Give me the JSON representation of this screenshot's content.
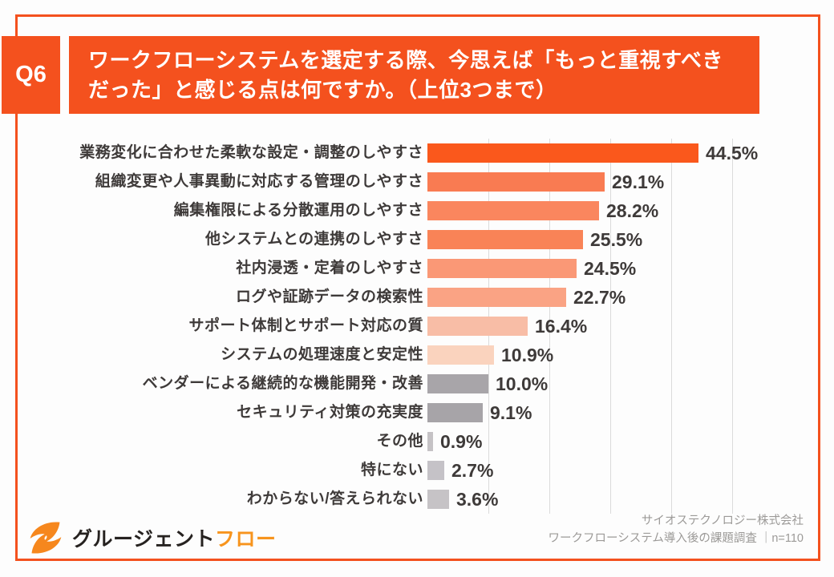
{
  "page": {
    "background": "#FDFDFD",
    "frame_color": "#F4511E"
  },
  "header": {
    "q_label": "Q6",
    "question_line1": "ワークフローシステムを選定する際、今思えば「もっと重視すべき",
    "question_line2": "だった」と感じる点は何ですか。（上位3つまで）"
  },
  "chart_data": {
    "type": "bar",
    "orientation": "horizontal",
    "title": "",
    "xlabel": "",
    "ylabel": "",
    "xlim": [
      0,
      50
    ],
    "gridline_interval_percent": 10,
    "grid": true,
    "legend": "none",
    "categories": [
      "業務変化に合わせた柔軟な設定・調整のしやすさ",
      "組織変更や人事異動に対応する管理のしやすさ",
      "編集権限による分散運用のしやすさ",
      "他システムとの連携のしやすさ",
      "社内浸透・定着のしやすさ",
      "ログや証跡データの検索性",
      "サポート体制とサポート対応の質",
      "システムの処理速度と安定性",
      "ベンダーによる継続的な機能開発・改善",
      "セキュリティ対策の充実度",
      "その他",
      "特にない",
      "わからない/答えられない"
    ],
    "values": [
      44.5,
      29.1,
      28.2,
      25.5,
      24.5,
      22.7,
      16.4,
      10.9,
      10.0,
      9.1,
      0.9,
      2.7,
      3.6
    ],
    "value_labels": [
      "44.5%",
      "29.1%",
      "28.2%",
      "25.5%",
      "24.5%",
      "22.7%",
      "16.4%",
      "10.9%",
      "10.0%",
      "9.1%",
      "0.9%",
      "2.7%",
      "3.6%"
    ],
    "bar_colors": [
      "#FA581C",
      "#F97B52",
      "#FA865E",
      "#F98357",
      "#FA9876",
      "#FAA384",
      "#F8BDA6",
      "#FAD3BE",
      "#A8A5A9",
      "#A7A4A8",
      "#C5C2C5",
      "#C5C2C7",
      "#C6C3C6"
    ],
    "gridline_color": "#DBDBDB"
  },
  "footer": {
    "logo_mark": "grusient-flow-bolt-icon",
    "logo_color": "#F6871D",
    "logo_text_dark": "グルージェント",
    "logo_text_orange": "フロー",
    "source_line1": "サイオステクノロジー株式会社",
    "source_line2": "ワークフローシステム導入後の課題調査 ｜n=110"
  }
}
